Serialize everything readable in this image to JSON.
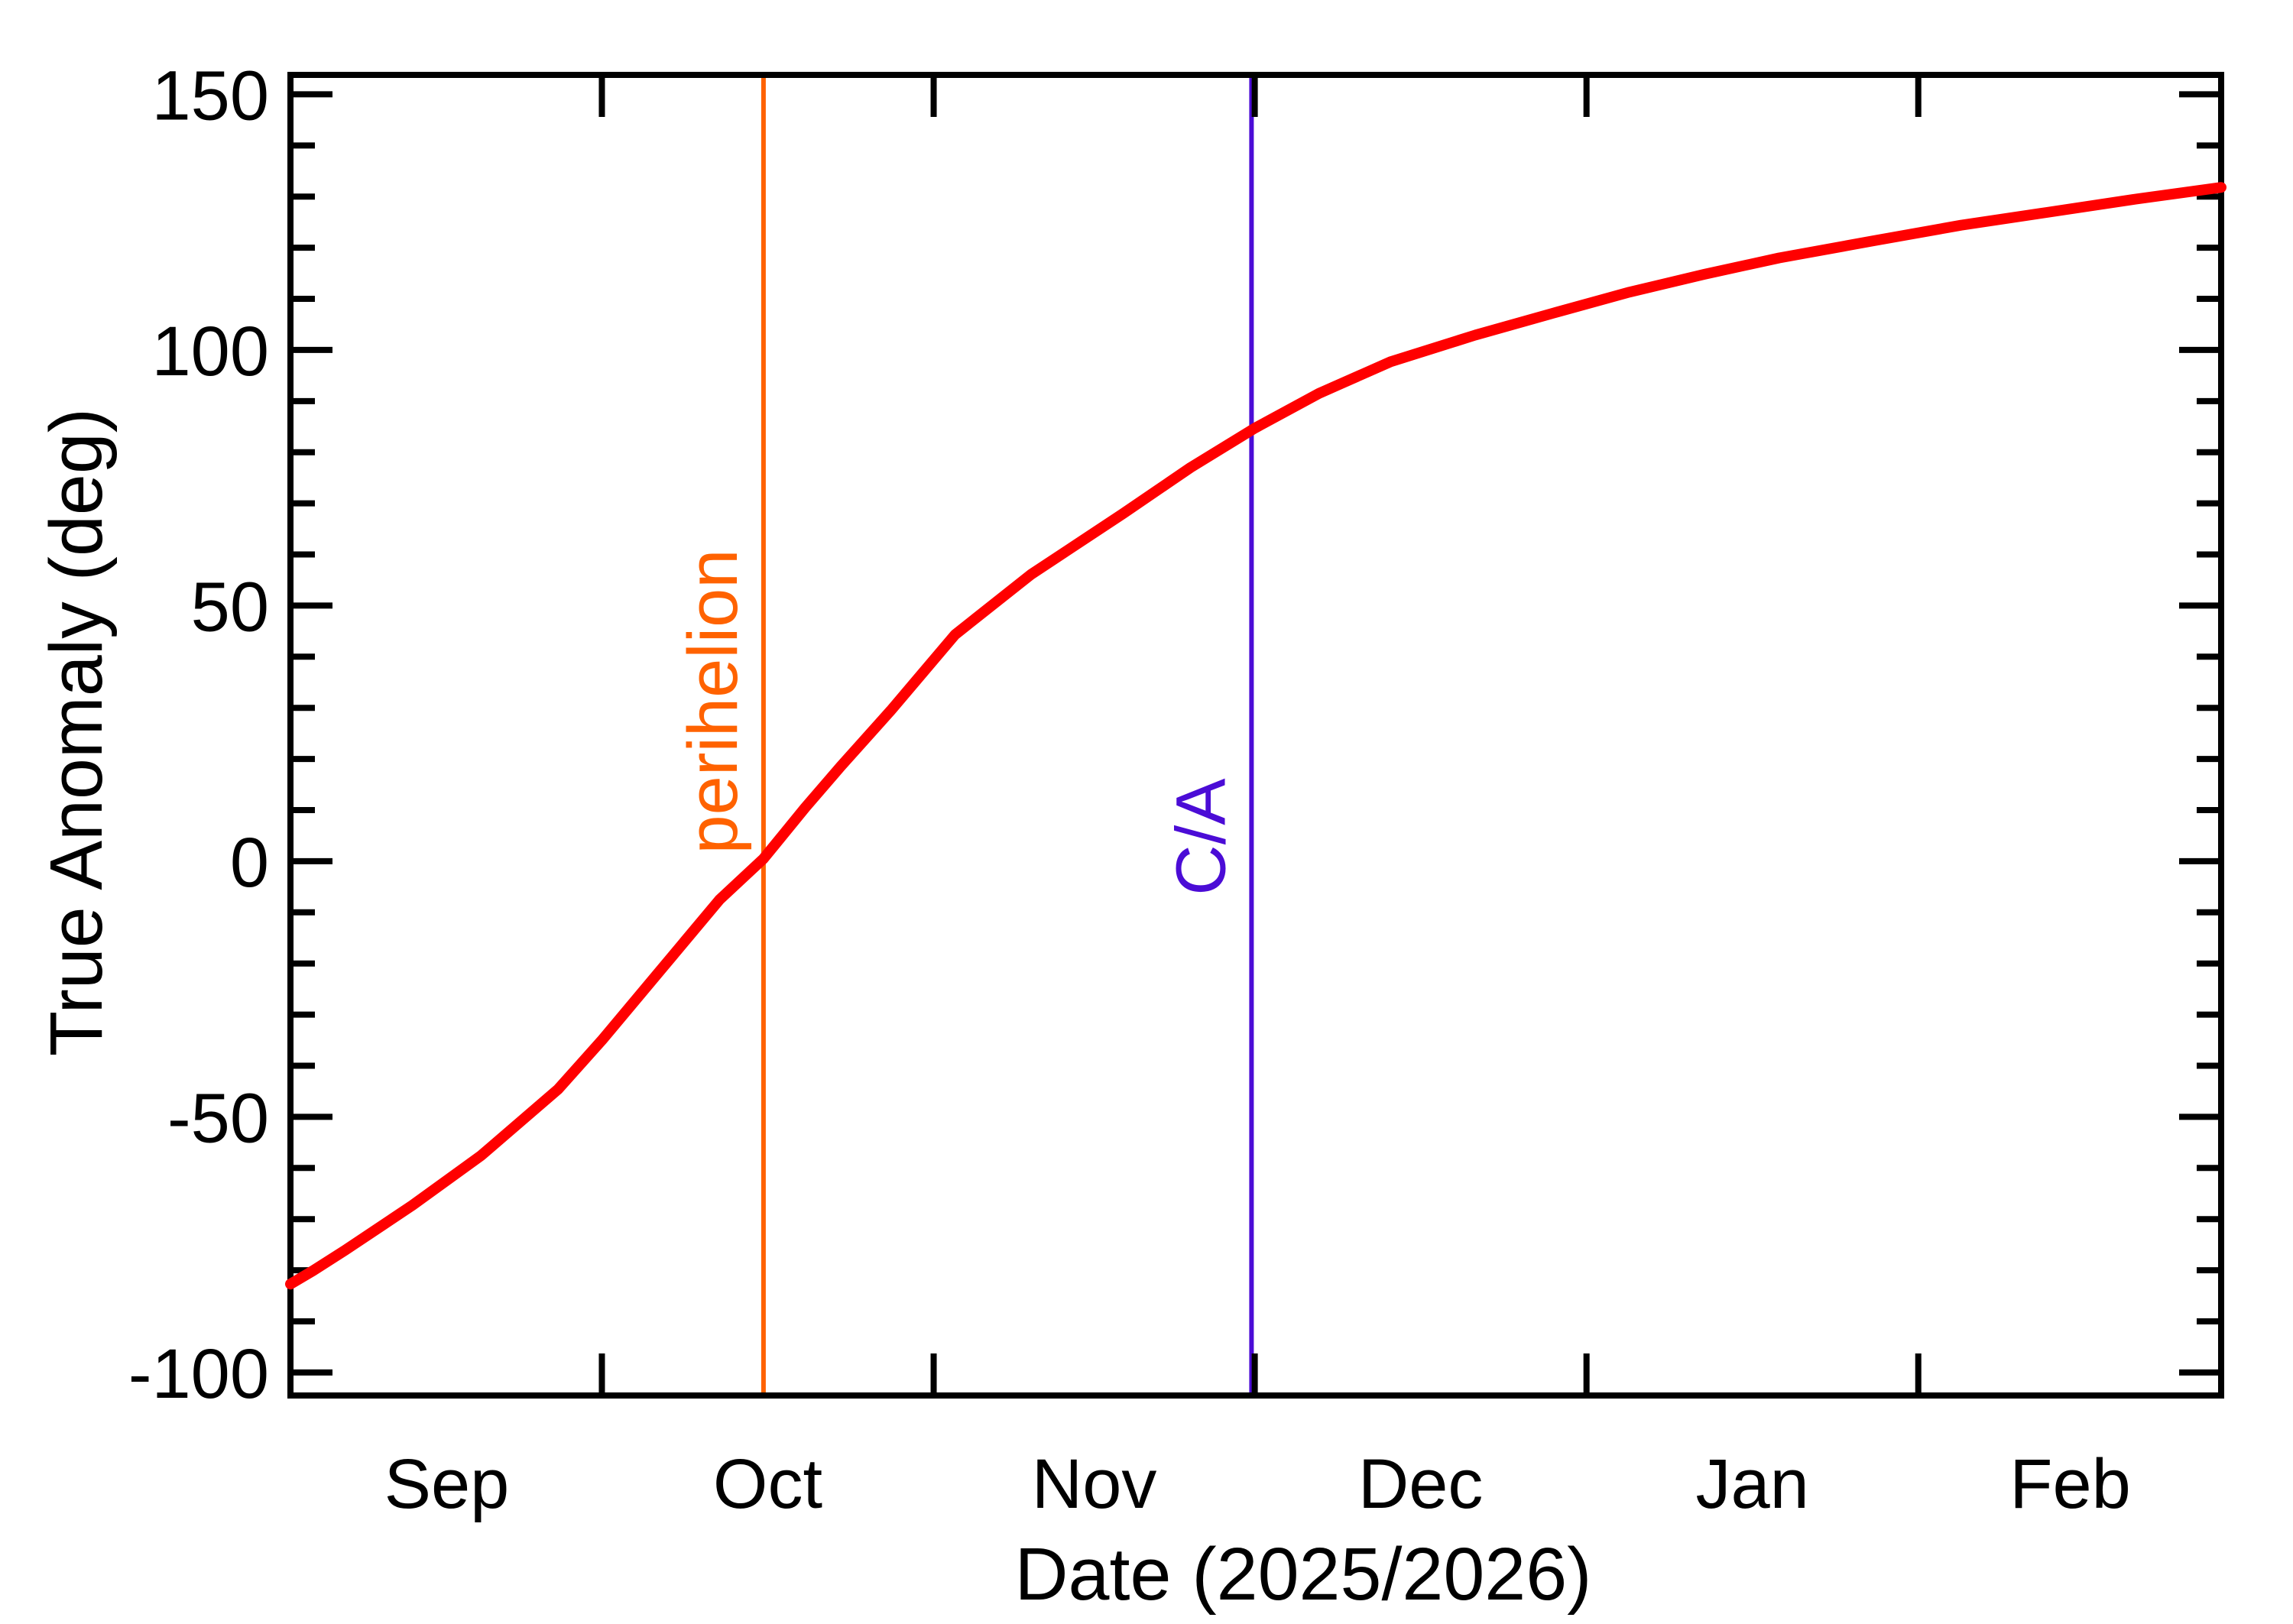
{
  "figure": {
    "background": "#FFFFFF",
    "axis_color": "#000000",
    "ylabel": "True Anomaly (deg)",
    "xlabel": "Date (2025/2026)"
  },
  "chart_data": {
    "type": "line",
    "title": "",
    "xlabel": "Date (2025/2026)",
    "ylabel": "True Anomaly (deg)",
    "x_unit": "days since Sep 1 (2025/2026 season)",
    "xlim": [
      0.9,
      181.3
    ],
    "ylim": [
      -104.5,
      153.8
    ],
    "grid": false,
    "y_major_ticks": [
      150,
      100,
      50,
      0,
      -50,
      -100
    ],
    "y_minor_step": 10,
    "x_month_tick_days": [
      30,
      61,
      91,
      122,
      153
    ],
    "month_labels": [
      {
        "label": "Sep",
        "day": 15.5
      },
      {
        "label": "Oct",
        "day": 45.5
      },
      {
        "label": "Nov",
        "day": 76.0
      },
      {
        "label": "Dec",
        "day": 106.5
      },
      {
        "label": "Jan",
        "day": 137.5
      },
      {
        "label": "Feb",
        "day": 167.2
      }
    ],
    "series": [
      {
        "name": "true-anomaly",
        "color": "#FF0000",
        "stroke_width": 14,
        "points": [
          [
            0.9,
            -82.7
          ],
          [
            3,
            -80.1
          ],
          [
            6,
            -76.1
          ],
          [
            12.3,
            -67.3
          ],
          [
            18.7,
            -57.6
          ],
          [
            25.9,
            -44.6
          ],
          [
            30,
            -35.0
          ],
          [
            36.6,
            -18.5
          ],
          [
            41,
            -7.5
          ],
          [
            45.1,
            0.5
          ],
          [
            49,
            10.5
          ],
          [
            52.3,
            18.5
          ],
          [
            57,
            29.5
          ],
          [
            63,
            44.3
          ],
          [
            70.1,
            56.1
          ],
          [
            78.7,
            68.0
          ],
          [
            85,
            77.0
          ],
          [
            91,
            84.7
          ],
          [
            97,
            91.5
          ],
          [
            103.7,
            97.7
          ],
          [
            111.6,
            102.9
          ],
          [
            119.4,
            107.5
          ],
          [
            126,
            111.3
          ],
          [
            133,
            114.8
          ],
          [
            140,
            118.0
          ],
          [
            148.7,
            121.3
          ],
          [
            157,
            124.4
          ],
          [
            165,
            126.9
          ],
          [
            173,
            129.4
          ],
          [
            181.3,
            131.8
          ]
        ]
      }
    ],
    "annotations": [
      {
        "label": "perihelion",
        "day": 45.1,
        "value_at_line": 0,
        "color": "#FF6200"
      },
      {
        "label": "C/A",
        "day": 90.7,
        "value_at_line": 85,
        "color": "#4B0CD6"
      }
    ]
  }
}
